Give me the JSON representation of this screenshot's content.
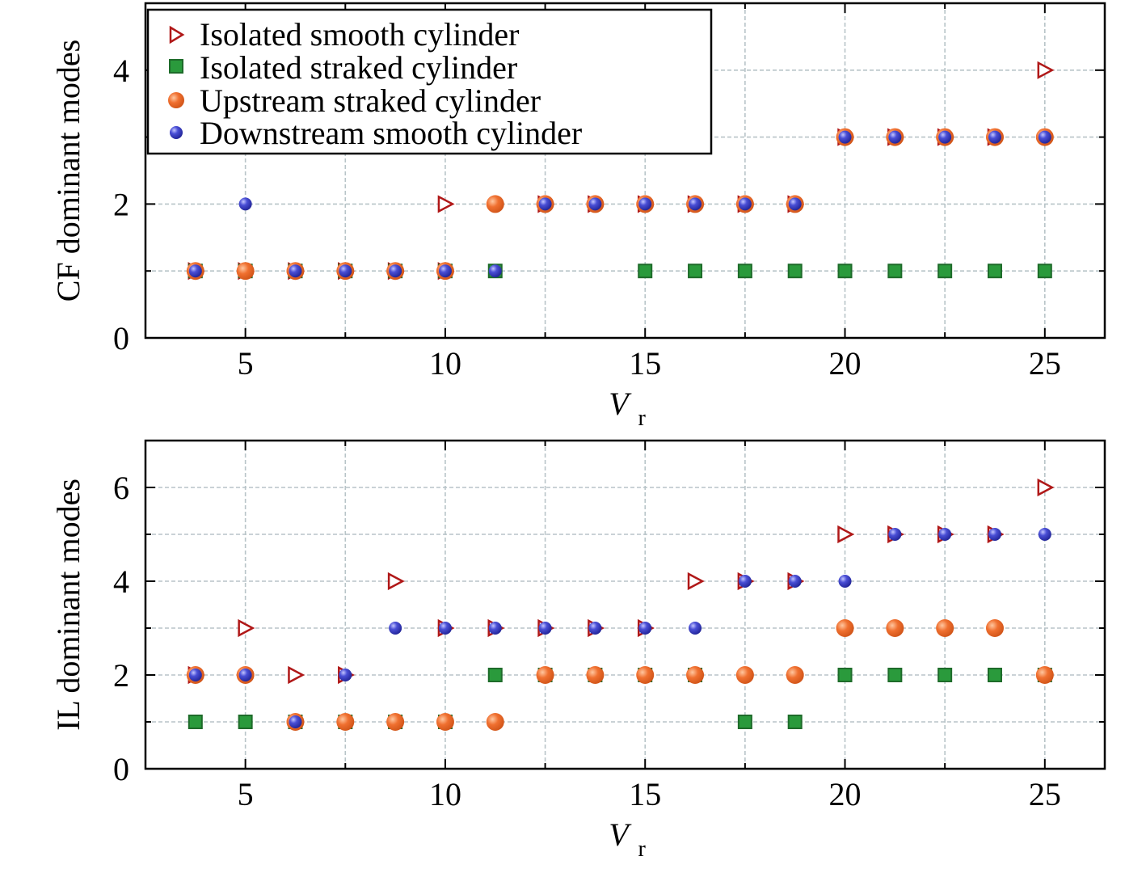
{
  "chart_data": [
    {
      "type": "scatter",
      "xlabel": "V",
      "xlabel_sub": "r",
      "ylabel": "CF dominant modes",
      "xlim": [
        2.5,
        26.5
      ],
      "ylim": [
        0,
        5
      ],
      "xticks": [
        5,
        10,
        15,
        20,
        25
      ],
      "yticks": [
        0,
        2,
        4
      ],
      "grid": true,
      "legend_position": "top-left",
      "series": [
        {
          "name": "Isolated smooth cylinder",
          "marker": "triangle-right-open",
          "color": "#b01818",
          "points": [
            [
              3.75,
              1
            ],
            [
              5,
              1
            ],
            [
              6.25,
              1
            ],
            [
              7.5,
              1
            ],
            [
              8.75,
              1
            ],
            [
              10,
              1
            ],
            [
              10,
              2
            ],
            [
              12.5,
              2
            ],
            [
              13.75,
              2
            ],
            [
              15,
              2
            ],
            [
              16.25,
              2
            ],
            [
              17.5,
              2
            ],
            [
              18.75,
              2
            ],
            [
              20,
              3
            ],
            [
              21.25,
              3
            ],
            [
              22.5,
              3
            ],
            [
              23.75,
              3
            ],
            [
              25,
              4
            ]
          ]
        },
        {
          "name": "Isolated straked cylinder",
          "marker": "square",
          "color": "#2a9a3c",
          "points": [
            [
              3.75,
              1
            ],
            [
              5,
              1
            ],
            [
              6.25,
              1
            ],
            [
              7.5,
              1
            ],
            [
              8.75,
              1
            ],
            [
              10,
              1
            ],
            [
              11.25,
              1
            ],
            [
              15,
              1
            ],
            [
              16.25,
              1
            ],
            [
              17.5,
              1
            ],
            [
              18.75,
              1
            ],
            [
              20,
              1
            ],
            [
              21.25,
              1
            ],
            [
              22.5,
              1
            ],
            [
              23.75,
              1
            ],
            [
              25,
              1
            ]
          ]
        },
        {
          "name": "Upstream straked cylinder",
          "marker": "circle-large",
          "color": "#f07030",
          "points": [
            [
              3.75,
              1
            ],
            [
              5,
              1
            ],
            [
              6.25,
              1
            ],
            [
              7.5,
              1
            ],
            [
              8.75,
              1
            ],
            [
              10,
              1
            ],
            [
              11.25,
              2
            ],
            [
              12.5,
              2
            ],
            [
              13.75,
              2
            ],
            [
              15,
              2
            ],
            [
              16.25,
              2
            ],
            [
              17.5,
              2
            ],
            [
              18.75,
              2
            ],
            [
              20,
              3
            ],
            [
              21.25,
              3
            ],
            [
              22.5,
              3
            ],
            [
              23.75,
              3
            ],
            [
              25,
              3
            ]
          ]
        },
        {
          "name": "Downstream smooth cylinder",
          "marker": "circle-small",
          "color": "#3b3fc8",
          "points": [
            [
              3.75,
              1
            ],
            [
              5,
              2
            ],
            [
              6.25,
              1
            ],
            [
              7.5,
              1
            ],
            [
              8.75,
              1
            ],
            [
              10,
              1
            ],
            [
              11.25,
              1
            ],
            [
              12.5,
              2
            ],
            [
              13.75,
              2
            ],
            [
              15,
              2
            ],
            [
              16.25,
              2
            ],
            [
              17.5,
              2
            ],
            [
              18.75,
              2
            ],
            [
              20,
              3
            ],
            [
              21.25,
              3
            ],
            [
              22.5,
              3
            ],
            [
              23.75,
              3
            ],
            [
              25,
              3
            ]
          ]
        }
      ]
    },
    {
      "type": "scatter",
      "xlabel": "V",
      "xlabel_sub": "r",
      "ylabel": "IL dominant modes",
      "xlim": [
        2.5,
        26.5
      ],
      "ylim": [
        0,
        7
      ],
      "xticks": [
        5,
        10,
        15,
        20,
        25
      ],
      "yticks": [
        0,
        2,
        4,
        6
      ],
      "grid": true,
      "series": [
        {
          "name": "Isolated smooth cylinder",
          "marker": "triangle-right-open",
          "color": "#b01818",
          "points": [
            [
              3.75,
              2
            ],
            [
              5,
              3
            ],
            [
              6.25,
              2
            ],
            [
              7.5,
              2
            ],
            [
              8.75,
              4
            ],
            [
              10,
              3
            ],
            [
              11.25,
              3
            ],
            [
              12.5,
              3
            ],
            [
              13.75,
              3
            ],
            [
              15,
              3
            ],
            [
              16.25,
              4
            ],
            [
              17.5,
              4
            ],
            [
              18.75,
              4
            ],
            [
              20,
              5
            ],
            [
              21.25,
              5
            ],
            [
              22.5,
              5
            ],
            [
              23.75,
              5
            ],
            [
              25,
              6
            ]
          ]
        },
        {
          "name": "Isolated straked cylinder",
          "marker": "square",
          "color": "#2a9a3c",
          "points": [
            [
              3.75,
              1
            ],
            [
              5,
              1
            ],
            [
              6.25,
              1
            ],
            [
              7.5,
              1
            ],
            [
              8.75,
              1
            ],
            [
              10,
              1
            ],
            [
              11.25,
              2
            ],
            [
              12.5,
              2
            ],
            [
              13.75,
              2
            ],
            [
              15,
              2
            ],
            [
              16.25,
              2
            ],
            [
              17.5,
              1
            ],
            [
              18.75,
              1
            ],
            [
              20,
              2
            ],
            [
              21.25,
              2
            ],
            [
              22.5,
              2
            ],
            [
              23.75,
              2
            ],
            [
              25,
              2
            ]
          ]
        },
        {
          "name": "Upstream straked cylinder",
          "marker": "circle-large",
          "color": "#f07030",
          "points": [
            [
              3.75,
              2
            ],
            [
              5,
              2
            ],
            [
              6.25,
              1
            ],
            [
              7.5,
              1
            ],
            [
              8.75,
              1
            ],
            [
              10,
              1
            ],
            [
              11.25,
              1
            ],
            [
              12.5,
              2
            ],
            [
              13.75,
              2
            ],
            [
              15,
              2
            ],
            [
              16.25,
              2
            ],
            [
              17.5,
              2
            ],
            [
              18.75,
              2
            ],
            [
              20,
              3
            ],
            [
              21.25,
              3
            ],
            [
              22.5,
              3
            ],
            [
              23.75,
              3
            ],
            [
              25,
              2
            ]
          ]
        },
        {
          "name": "Downstream smooth cylinder",
          "marker": "circle-small",
          "color": "#3b3fc8",
          "points": [
            [
              3.75,
              2
            ],
            [
              5,
              2
            ],
            [
              6.25,
              1
            ],
            [
              7.5,
              2
            ],
            [
              8.75,
              3
            ],
            [
              10,
              3
            ],
            [
              11.25,
              3
            ],
            [
              12.5,
              3
            ],
            [
              13.75,
              3
            ],
            [
              15,
              3
            ],
            [
              16.25,
              3
            ],
            [
              17.5,
              4
            ],
            [
              18.75,
              4
            ],
            [
              20,
              4
            ],
            [
              21.25,
              5
            ],
            [
              22.5,
              5
            ],
            [
              23.75,
              5
            ],
            [
              25,
              5
            ]
          ]
        }
      ]
    }
  ]
}
